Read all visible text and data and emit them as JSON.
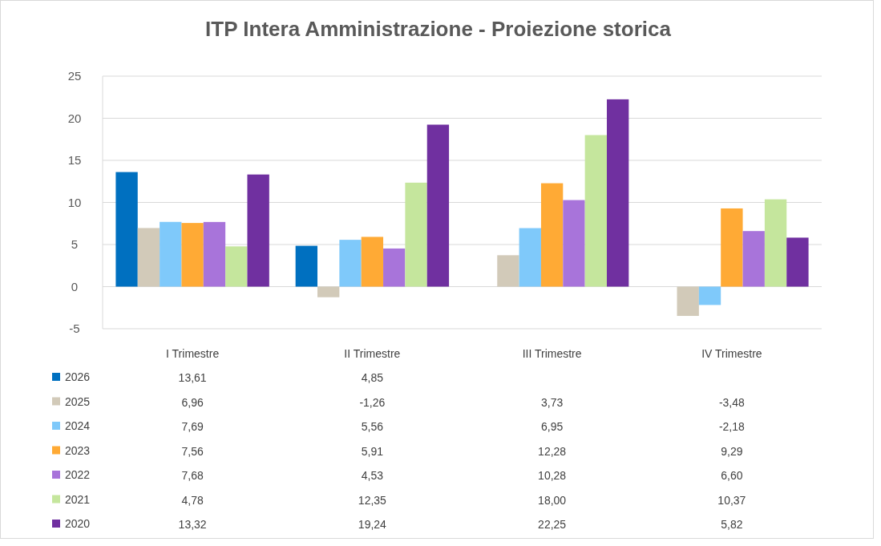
{
  "chart_data": {
    "type": "bar",
    "title": "ITP Intera Amministrazione - Proiezione storica",
    "categories": [
      "I Trimestre",
      "II Trimestre",
      "III Trimestre",
      "IV Trimestre"
    ],
    "ylim": [
      -5,
      25
    ],
    "yticks": [
      -5,
      0,
      5,
      10,
      15,
      20,
      25
    ],
    "grid": "y",
    "legend": "bottom",
    "series": [
      {
        "name": "2026",
        "color": "#0070c0",
        "values": [
          13.61,
          4.85,
          null,
          null
        ],
        "value_labels": [
          "13,61",
          "4,85",
          null,
          null
        ]
      },
      {
        "name": "2025",
        "color": "#d2cab9",
        "values": [
          6.96,
          -1.26,
          3.73,
          -3.48
        ],
        "value_labels": [
          "6,96",
          "-1,26",
          "3,73",
          "-3,48"
        ]
      },
      {
        "name": "2024",
        "color": "#7fc9fa",
        "values": [
          7.69,
          5.56,
          6.95,
          -2.18
        ],
        "value_labels": [
          "7,69",
          "5,56",
          "6,95",
          "-2,18"
        ]
      },
      {
        "name": "2023",
        "color": "#ffaa35",
        "values": [
          7.56,
          5.91,
          12.28,
          9.29
        ],
        "value_labels": [
          "7,56",
          "5,91",
          "12,28",
          "9,29"
        ]
      },
      {
        "name": "2022",
        "color": "#a874da",
        "values": [
          7.68,
          4.53,
          10.28,
          6.6
        ],
        "value_labels": [
          "7,68",
          "4,53",
          "10,28",
          "6,60"
        ]
      },
      {
        "name": "2021",
        "color": "#c5e69d",
        "values": [
          4.78,
          12.35,
          18,
          10.37
        ],
        "value_labels": [
          "4,78",
          "12,35",
          "18,00",
          "10,37"
        ]
      },
      {
        "name": "2020",
        "color": "#7030a0",
        "values": [
          13.32,
          19.24,
          22.25,
          5.82
        ],
        "value_labels": [
          "13,32",
          "19,24",
          "22,25",
          "5,82"
        ]
      }
    ]
  }
}
